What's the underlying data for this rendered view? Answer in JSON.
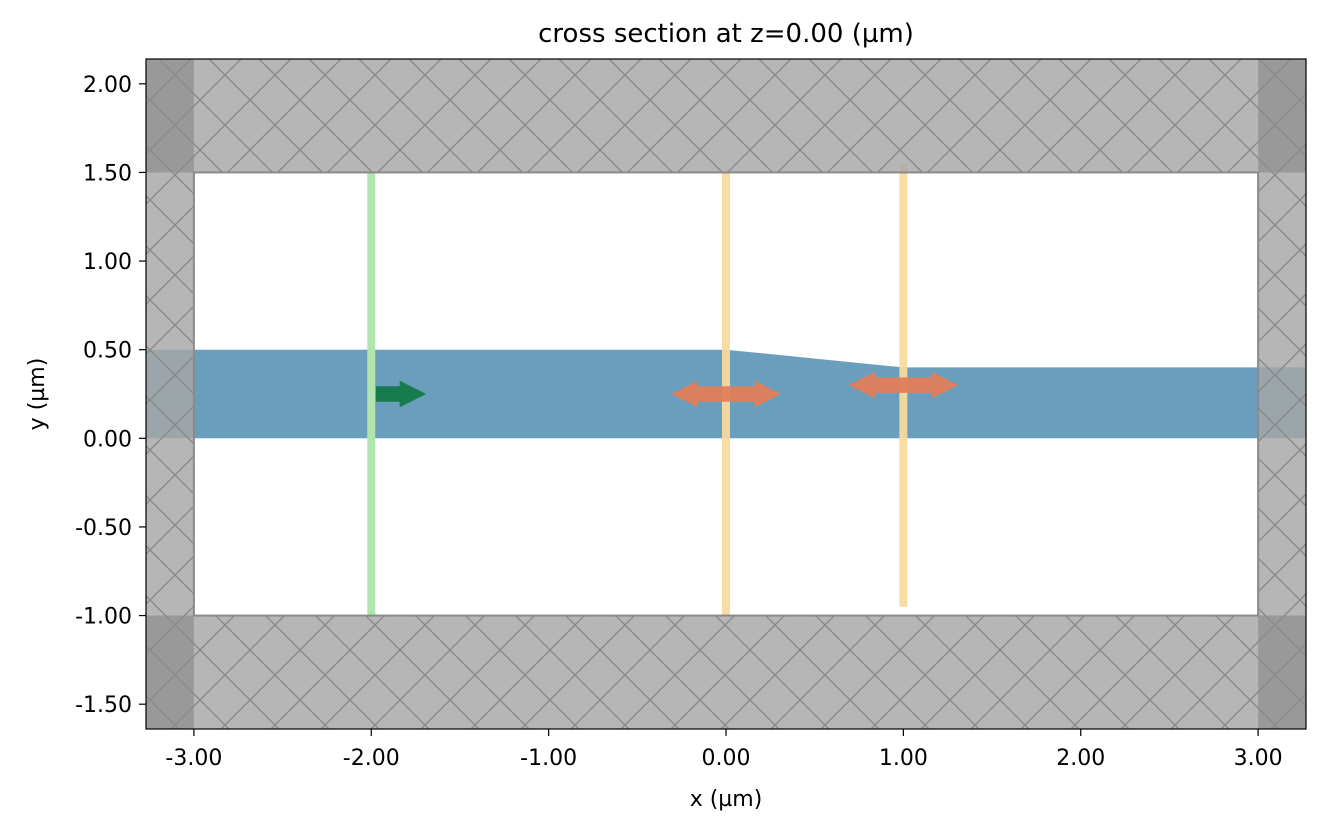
{
  "chart_data": {
    "type": "simulation-cross-section",
    "title": "cross section at z=0.00 (µm)",
    "xlabel": "x (µm)",
    "ylabel": "y (µm)",
    "xlim": [
      -3.27,
      3.27
    ],
    "ylim": [
      -1.64,
      2.14
    ],
    "xticks": [
      -3,
      -2,
      -1,
      0,
      1,
      2,
      3
    ],
    "xtick_labels": [
      "-3.00",
      "-2.00",
      "-1.00",
      "0.00",
      "1.00",
      "2.00",
      "3.00"
    ],
    "yticks": [
      -1.5,
      -1,
      -0.5,
      0,
      0.5,
      1,
      1.5,
      2
    ],
    "ytick_labels": [
      "-1.50",
      "-1.00",
      "-0.50",
      "0.00",
      "0.50",
      "1.00",
      "1.50",
      "2.00"
    ],
    "grid": false,
    "colors": {
      "pml": "#a6a6a6",
      "pml_hatch": "#8a8a8a",
      "pml_corner": "#8c8c8c",
      "waveguide": "#6a9ebd",
      "source": "#b2e5ae",
      "source_arrow": "#137a4a",
      "monitor": "#f9d9a0",
      "monitor_arrow": "#e07f5b"
    },
    "pml_regions": {
      "left": [
        -3.27,
        -3.0
      ],
      "right": [
        3.0,
        3.27
      ],
      "bottom": [
        -1.64,
        -1.0
      ],
      "top": [
        1.5,
        2.14
      ]
    },
    "waveguide_polygon": [
      [
        -3.27,
        0.0
      ],
      [
        3.27,
        0.0
      ],
      [
        3.27,
        0.4
      ],
      [
        1.0,
        0.4
      ],
      [
        0.0,
        0.5
      ],
      [
        -3.27,
        0.5
      ]
    ],
    "source": {
      "x": -2.0,
      "y_range": [
        -1.0,
        1.5
      ],
      "arrow_y": 0.25,
      "arrow_x_range": [
        -1.97,
        -1.7
      ]
    },
    "monitors": [
      {
        "x": 0.0,
        "y_range": [
          -1.0,
          1.5
        ],
        "arrow_y": 0.25,
        "arrow_x_range": [
          -0.3,
          0.3
        ]
      },
      {
        "x": 1.0,
        "y_range": [
          -0.95,
          1.55
        ],
        "arrow_y": 0.3,
        "arrow_x_range": [
          0.7,
          1.3
        ]
      }
    ]
  }
}
